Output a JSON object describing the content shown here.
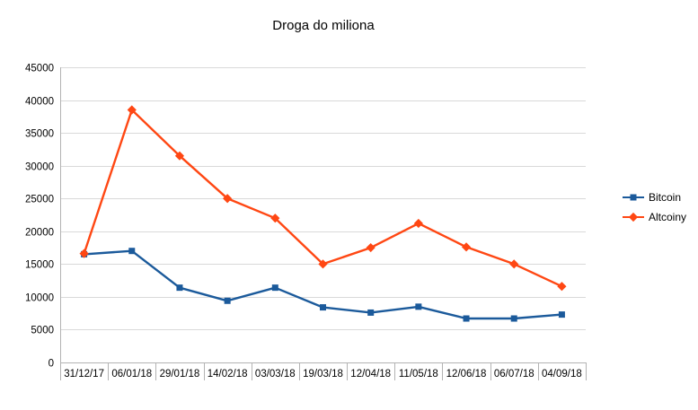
{
  "chart_data": {
    "type": "line",
    "title": "Droga do miliona",
    "categories": [
      "31/12/17",
      "06/01/18",
      "29/01/18",
      "14/02/18",
      "03/03/18",
      "19/03/18",
      "12/04/18",
      "11/05/18",
      "12/06/18",
      "06/07/18",
      "04/09/18"
    ],
    "series": [
      {
        "name": "Bitcoin",
        "marker": "square",
        "color": "#1b5a9b",
        "values": [
          16500,
          17000,
          11400,
          9400,
          11400,
          8400,
          7600,
          8500,
          6700,
          6700,
          7300
        ]
      },
      {
        "name": "Altcoiny",
        "marker": "diamond",
        "color": "#ff4713",
        "values": [
          16600,
          38500,
          31500,
          25000,
          22000,
          15000,
          17500,
          21200,
          17600,
          15000,
          11600
        ]
      }
    ],
    "ylim": [
      0,
      45000
    ],
    "ytick_step": 5000,
    "grid": true,
    "legend_position": "right",
    "colors": {
      "grid": "#d9d9d9",
      "axis": "#b3b3b3",
      "text": "#000000",
      "background": "#ffffff"
    }
  }
}
